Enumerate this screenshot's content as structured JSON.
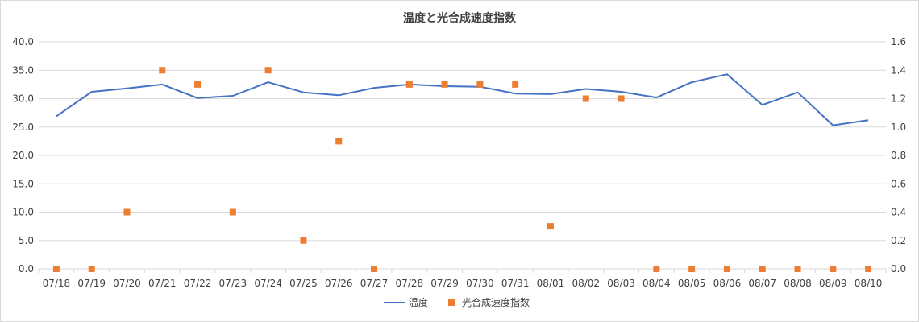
{
  "chart_data": {
    "type": "line",
    "title": "温度と光合成速度指数",
    "categories": [
      "07/18",
      "07/19",
      "07/20",
      "07/21",
      "07/22",
      "07/23",
      "07/24",
      "07/25",
      "07/26",
      "07/27",
      "07/28",
      "07/29",
      "07/30",
      "07/31",
      "08/01",
      "08/02",
      "08/03",
      "08/04",
      "08/05",
      "08/06",
      "08/07",
      "08/08",
      "08/09",
      "08/10"
    ],
    "series": [
      {
        "name": "温度",
        "type": "line",
        "axis": "left",
        "color": "#4472C4",
        "values": [
          26.9,
          31.2,
          31.8,
          32.5,
          30.1,
          30.5,
          32.9,
          31.1,
          30.6,
          31.9,
          32.5,
          32.2,
          32.1,
          30.9,
          30.8,
          31.7,
          31.2,
          30.2,
          32.9,
          34.3,
          28.9,
          31.1,
          25.3,
          26.2
        ]
      },
      {
        "name": "光合成速度指数",
        "type": "scatter",
        "axis": "right",
        "color": "#ED7D31",
        "values": [
          0.0,
          0.0,
          0.4,
          1.4,
          1.3,
          0.4,
          1.4,
          0.2,
          0.9,
          0.0,
          1.3,
          1.3,
          1.3,
          1.3,
          0.3,
          1.2,
          1.2,
          0.0,
          0.0,
          0.0,
          0.0,
          0.0,
          0.0,
          0.0
        ]
      }
    ],
    "y_left": {
      "ylim": [
        0,
        40
      ],
      "ticks": [
        "0.0",
        "5.0",
        "10.0",
        "15.0",
        "20.0",
        "25.0",
        "30.0",
        "35.0",
        "40.0"
      ]
    },
    "y_right": {
      "ylim": [
        0,
        1.6
      ],
      "ticks": [
        "0.0",
        "0.2",
        "0.4",
        "0.6",
        "0.8",
        "1.0",
        "1.2",
        "1.4",
        "1.6"
      ]
    },
    "grid": true,
    "legend_position": "bottom"
  }
}
